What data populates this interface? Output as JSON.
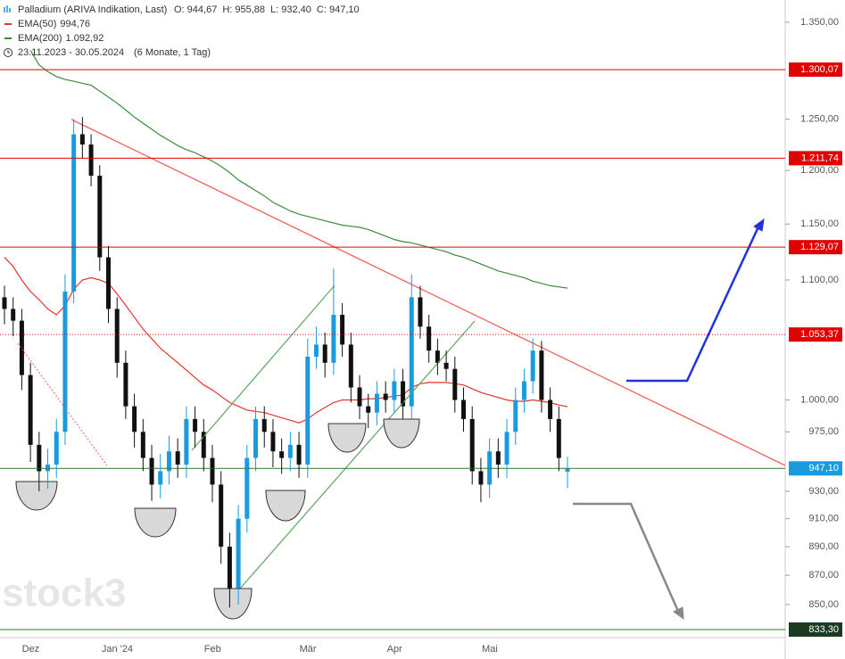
{
  "chart_data": {
    "type": "candlestick",
    "title": "Palladium (ARIVA Indikation, Last)",
    "quote": [
      "O: 944,67",
      "H: 955,88",
      "L: 932,40",
      "C: 947,10"
    ],
    "date_range": "23.11.2023 - 30.05.2024",
    "period": "(6 Monate, 1 Tag)",
    "watermark": "stock3",
    "log_scale": true,
    "up_color": "#1a9be0",
    "down_color": "#111111",
    "categories": [
      null,
      null,
      "Dez",
      null,
      null,
      null,
      null,
      null,
      null,
      null,
      null,
      null,
      "Jan '24",
      null,
      null,
      null,
      null,
      null,
      null,
      null,
      null,
      null,
      null,
      "Feb",
      null,
      null,
      null,
      null,
      null,
      null,
      null,
      null,
      null,
      null,
      "Mär",
      null,
      null,
      null,
      null,
      null,
      null,
      null,
      null,
      null,
      "Apr",
      null,
      null,
      null,
      null,
      null,
      null,
      null,
      null,
      null,
      null,
      "Mai",
      null,
      null,
      null,
      null,
      null,
      null,
      null,
      null,
      null,
      null
    ],
    "open": [
      1085,
      1075,
      1065,
      1020,
      965,
      945,
      950,
      975,
      1090,
      1235,
      1225,
      1195,
      1120,
      1075,
      1030,
      995,
      975,
      955,
      935,
      945,
      960,
      950,
      985,
      975,
      955,
      935,
      890,
      855,
      910,
      955,
      985,
      975,
      960,
      955,
      965,
      950,
      1035,
      1045,
      1030,
      1070,
      1045,
      1010,
      995,
      990,
      1005,
      1000,
      1015,
      995,
      1085,
      1060,
      1040,
      1030,
      1025,
      1000,
      985,
      945,
      935,
      960,
      950,
      975,
      1000,
      1015,
      1040,
      1000,
      985,
      944.67
    ],
    "high": [
      1095,
      1085,
      1075,
      1030,
      975,
      962,
      985,
      1105,
      1250,
      1252,
      1235,
      1205,
      1130,
      1085,
      1040,
      1005,
      985,
      965,
      958,
      972,
      970,
      995,
      995,
      985,
      965,
      945,
      900,
      920,
      965,
      995,
      995,
      985,
      970,
      975,
      975,
      1050,
      1060,
      1055,
      1110,
      1080,
      1055,
      1020,
      1005,
      1015,
      1015,
      1025,
      1025,
      1105,
      1095,
      1070,
      1050,
      1040,
      1035,
      1010,
      995,
      955,
      970,
      970,
      985,
      1010,
      1025,
      1050,
      1048,
      1010,
      995,
      955.88
    ],
    "low": [
      1062,
      1052,
      1008,
      952,
      930,
      932,
      940,
      965,
      1080,
      1212,
      1185,
      1108,
      1063,
      1018,
      985,
      963,
      945,
      923,
      925,
      935,
      940,
      940,
      963,
      945,
      922,
      878,
      848,
      850,
      900,
      945,
      963,
      948,
      943,
      945,
      940,
      940,
      1025,
      1018,
      1020,
      1035,
      998,
      985,
      978,
      980,
      990,
      990,
      985,
      985,
      1050,
      1030,
      1020,
      1015,
      990,
      975,
      935,
      922,
      925,
      940,
      940,
      965,
      990,
      1005,
      990,
      975,
      945,
      932.4
    ],
    "close": [
      1075,
      1065,
      1020,
      965,
      945,
      950,
      975,
      1090,
      1235,
      1225,
      1195,
      1120,
      1075,
      1030,
      995,
      975,
      955,
      935,
      945,
      960,
      950,
      985,
      975,
      955,
      935,
      890,
      855,
      910,
      955,
      985,
      975,
      960,
      955,
      965,
      950,
      1035,
      1045,
      1030,
      1070,
      1045,
      1010,
      995,
      990,
      1005,
      1000,
      1015,
      995,
      1085,
      1060,
      1040,
      1030,
      1025,
      1000,
      985,
      945,
      935,
      960,
      950,
      975,
      1000,
      1015,
      1040,
      1000,
      985,
      955,
      947.1
    ],
    "series": [
      {
        "name": "EMA(50)",
        "last_label": "994,76",
        "color": "#e8322c",
        "values": [
          1120,
          1112,
          1100,
          1090,
          1083,
          1075,
          1070,
          1078,
          1092,
          1100,
          1102,
          1100,
          1097,
          1088,
          1078,
          1068,
          1058,
          1050,
          1042,
          1036,
          1030,
          1024,
          1018,
          1012,
          1008,
          1003,
          998,
          995,
          992,
          991,
          990,
          988,
          986,
          984,
          982,
          985,
          990,
          994,
          998,
          1000,
          1000,
          1000,
          1001,
          1001,
          1002,
          1003,
          1004,
          1010,
          1013,
          1014,
          1014,
          1014,
          1013,
          1012,
          1009,
          1006,
          1004,
          1002,
          1000,
          999,
          999,
          1000,
          999,
          998,
          996,
          994.76
        ]
      },
      {
        "name": "EMA(200)",
        "last_label": "1.092,92",
        "color": "#3c8c3c",
        "values": [
          null,
          null,
          null,
          1320,
          1305,
          1298,
          1293,
          1290,
          1288,
          1286,
          1284,
          1278,
          1272,
          1266,
          1259,
          1252,
          1246,
          1240,
          1234,
          1229,
          1224,
          1220,
          1217,
          1213,
          1209,
          1204,
          1198,
          1191,
          1186,
          1181,
          1176,
          1170,
          1166,
          1162,
          1159,
          1157,
          1155,
          1153,
          1151,
          1149,
          1148,
          1147,
          1145,
          1142,
          1139,
          1136,
          1134,
          1133,
          1131,
          1129,
          1127,
          1125,
          1122,
          1120,
          1117,
          1114,
          1111,
          1108,
          1106,
          1104,
          1102,
          1099,
          1097,
          1095,
          1094,
          1092.92
        ]
      }
    ],
    "levels": [
      {
        "value": 1300.07,
        "label": "1.300,07",
        "color": "#e00000",
        "style": "solid"
      },
      {
        "value": 1211.74,
        "label": "1.211,74",
        "color": "#e00000",
        "style": "solid"
      },
      {
        "value": 1129.07,
        "label": "1.129,07",
        "color": "#e00000",
        "style": "solid"
      },
      {
        "value": 1053.37,
        "label": "1.053,37",
        "color": "#e00000",
        "style": "dotted"
      },
      {
        "value": 947.1,
        "label": "947,10",
        "color": "#2a7a2a",
        "tag_color": "#1a9be0",
        "style": "solid"
      },
      {
        "value": 833.3,
        "label": "833,30",
        "color": "#2a7a2a",
        "tag_color": "#1a3a22",
        "style": "solid"
      }
    ],
    "ylim": [
      828,
      1374
    ],
    "yticks": [
      {
        "value": 1350,
        "label": "1.350,00"
      },
      {
        "value": 1250,
        "label": "1.250,00"
      },
      {
        "value": 1200,
        "label": "1.200,00"
      },
      {
        "value": 1150,
        "label": "1.150,00"
      },
      {
        "value": 1100,
        "label": "1.100,00"
      },
      {
        "value": 1000,
        "label": "1.000,00"
      },
      {
        "value": 975,
        "label": "975,00"
      },
      {
        "value": 930,
        "label": "930,00"
      },
      {
        "value": 910,
        "label": "910,00"
      },
      {
        "value": 890,
        "label": "890,00"
      },
      {
        "value": 870,
        "label": "870,00"
      },
      {
        "value": 850,
        "label": "850,00"
      }
    ]
  }
}
